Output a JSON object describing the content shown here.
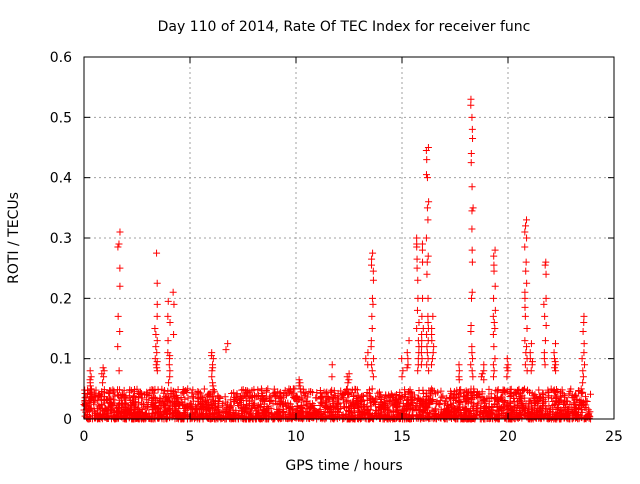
{
  "chart_data": {
    "type": "scatter",
    "title": "Day 110 of 2014, Rate Of TEC Index for receiver func",
    "xlabel": "GPS time / hours",
    "ylabel": "ROTI / TECUs",
    "xlim": [
      0,
      25
    ],
    "ylim": [
      0,
      0.6
    ],
    "xticks": [
      0,
      5,
      10,
      15,
      20,
      25
    ],
    "xtick_labels": [
      "0",
      "5",
      "10",
      "15",
      "20",
      "25"
    ],
    "yticks": [
      0,
      0.1,
      0.2,
      0.3,
      0.4,
      0.5,
      0.6
    ],
    "ytick_labels": [
      "0",
      "0.1",
      "0.2",
      "0.3",
      "0.4",
      "0.5",
      "0.6"
    ],
    "grid": true,
    "marker": "+",
    "marker_color": "#ff0000",
    "data_x_range": [
      0,
      23.9
    ],
    "baseline_band": {
      "low": 0.0,
      "high": 0.05
    },
    "bursts": [
      {
        "t": 0.3,
        "values": [
          0.08,
          0.07,
          0.06,
          0.065,
          0.055,
          0.05,
          0.045
        ]
      },
      {
        "t": 0.9,
        "values": [
          0.085,
          0.08,
          0.075,
          0.07,
          0.06
        ]
      },
      {
        "t": 1.65,
        "values": [
          0.31,
          0.29,
          0.285,
          0.25,
          0.22,
          0.17,
          0.145,
          0.12,
          0.08
        ]
      },
      {
        "t": 3.4,
        "values": [
          0.275,
          0.225,
          0.19,
          0.17,
          0.15,
          0.14,
          0.13,
          0.12,
          0.11,
          0.1,
          0.095,
          0.09,
          0.085,
          0.08
        ]
      },
      {
        "t": 4.0,
        "values": [
          0.195,
          0.17,
          0.16,
          0.13,
          0.11,
          0.105,
          0.1,
          0.09,
          0.08,
          0.07,
          0.06
        ]
      },
      {
        "t": 4.25,
        "values": [
          0.21,
          0.19,
          0.14
        ]
      },
      {
        "t": 6.05,
        "values": [
          0.11,
          0.105,
          0.1,
          0.09,
          0.085,
          0.08,
          0.07,
          0.06,
          0.055
        ]
      },
      {
        "t": 6.75,
        "values": [
          0.125,
          0.115
        ]
      },
      {
        "t": 10.2,
        "values": [
          0.065,
          0.06,
          0.055,
          0.05,
          0.045
        ]
      },
      {
        "t": 11.75,
        "values": [
          0.09,
          0.07
        ]
      },
      {
        "t": 12.45,
        "values": [
          0.075,
          0.07,
          0.065,
          0.06
        ]
      },
      {
        "t": 13.35,
        "values": [
          0.11,
          0.1,
          0.09
        ]
      },
      {
        "t": 13.6,
        "values": [
          0.275,
          0.265,
          0.255,
          0.245,
          0.23,
          0.2,
          0.19,
          0.17,
          0.15,
          0.13,
          0.12,
          0.1,
          0.09,
          0.08,
          0.07
        ]
      },
      {
        "t": 15.0,
        "values": [
          0.1,
          0.08,
          0.07
        ]
      },
      {
        "t": 15.3,
        "values": [
          0.13,
          0.11,
          0.1,
          0.09,
          0.085
        ]
      },
      {
        "t": 15.75,
        "values": [
          0.3,
          0.29,
          0.285,
          0.265,
          0.25,
          0.23,
          0.2,
          0.18,
          0.16,
          0.15,
          0.13,
          0.12,
          0.11,
          0.1,
          0.09,
          0.08
        ]
      },
      {
        "t": 15.95,
        "values": [
          0.29,
          0.28,
          0.26,
          0.2,
          0.17,
          0.15,
          0.14,
          0.13,
          0.12,
          0.11,
          0.1,
          0.09
        ]
      },
      {
        "t": 16.2,
        "values": [
          0.45,
          0.445,
          0.43,
          0.405,
          0.4,
          0.36,
          0.35,
          0.33,
          0.3,
          0.27,
          0.26,
          0.24,
          0.2,
          0.17,
          0.16,
          0.15,
          0.14,
          0.13,
          0.12,
          0.11,
          0.1,
          0.09,
          0.08
        ]
      },
      {
        "t": 16.45,
        "values": [
          0.17,
          0.15,
          0.14,
          0.13,
          0.12,
          0.11,
          0.1,
          0.09
        ]
      },
      {
        "t": 17.65,
        "values": [
          0.09,
          0.08,
          0.07,
          0.065
        ]
      },
      {
        "t": 18.3,
        "values": [
          0.53,
          0.52,
          0.5,
          0.48,
          0.465,
          0.44,
          0.425,
          0.385,
          0.35,
          0.345,
          0.315,
          0.28,
          0.26,
          0.21,
          0.2,
          0.155,
          0.145,
          0.12,
          0.11,
          0.1,
          0.09,
          0.08,
          0.07
        ]
      },
      {
        "t": 18.8,
        "values": [
          0.09,
          0.08,
          0.075,
          0.07,
          0.065
        ]
      },
      {
        "t": 19.35,
        "values": [
          0.28,
          0.27,
          0.255,
          0.245,
          0.22,
          0.2,
          0.18,
          0.17,
          0.16,
          0.15,
          0.14,
          0.12,
          0.1,
          0.09,
          0.08,
          0.07
        ]
      },
      {
        "t": 19.95,
        "values": [
          0.1,
          0.09,
          0.085,
          0.08,
          0.07
        ]
      },
      {
        "t": 20.85,
        "values": [
          0.33,
          0.32,
          0.31,
          0.3,
          0.285,
          0.26,
          0.245,
          0.225,
          0.21,
          0.2,
          0.185,
          0.17,
          0.15,
          0.13,
          0.12,
          0.11,
          0.1,
          0.09,
          0.08
        ]
      },
      {
        "t": 21.1,
        "values": [
          0.125,
          0.11,
          0.1,
          0.095,
          0.09,
          0.08
        ]
      },
      {
        "t": 21.75,
        "values": [
          0.26,
          0.255,
          0.24,
          0.2,
          0.19,
          0.17,
          0.155,
          0.13,
          0.11,
          0.1,
          0.09
        ]
      },
      {
        "t": 22.2,
        "values": [
          0.125,
          0.11,
          0.1,
          0.095,
          0.09,
          0.085,
          0.08
        ]
      },
      {
        "t": 23.55,
        "values": [
          0.17,
          0.16,
          0.145,
          0.125,
          0.11,
          0.1,
          0.09,
          0.08,
          0.07,
          0.06
        ]
      }
    ]
  }
}
